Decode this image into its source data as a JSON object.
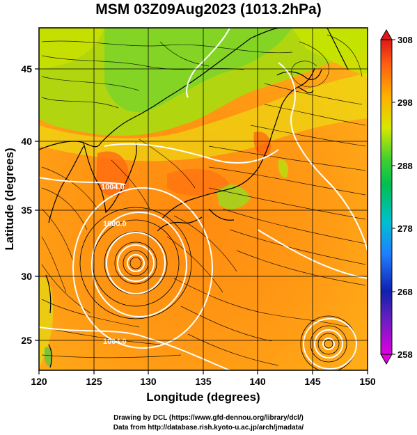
{
  "title": "MSM 03Z09Aug2023 (1013.2hPa)",
  "map": {
    "x_axis_label": "Longitude (degrees)",
    "y_axis_label": "Latitude  (degrees)",
    "x_ticks": [
      "120",
      "125",
      "130",
      "135",
      "140",
      "145",
      "150"
    ],
    "y_ticks": [
      "25",
      "30",
      "35",
      "40",
      "45"
    ],
    "lon_range": [
      120,
      150
    ],
    "lat_range": [
      22.4,
      47.6
    ],
    "isobar_labels": [
      "1004.0",
      "1000.0",
      "1004.0"
    ]
  },
  "colorbar": {
    "ticks": [
      "308",
      "298",
      "288",
      "278",
      "268",
      "258"
    ],
    "range": [
      258,
      308
    ],
    "colors": [
      "#d000d0",
      "#2020c0",
      "#2060ff",
      "#00b0e0",
      "#00c060",
      "#40d040",
      "#b0e000",
      "#f0f000",
      "#ffa000",
      "#ff6000",
      "#e01010"
    ]
  },
  "credits": {
    "line1": "Drawing by DCL (https://www.gfd-dennou.org/library/dcl/)",
    "line2": "Data from http://database.rish.kyoto-u.ac.jp/arch/jmadata/"
  }
}
